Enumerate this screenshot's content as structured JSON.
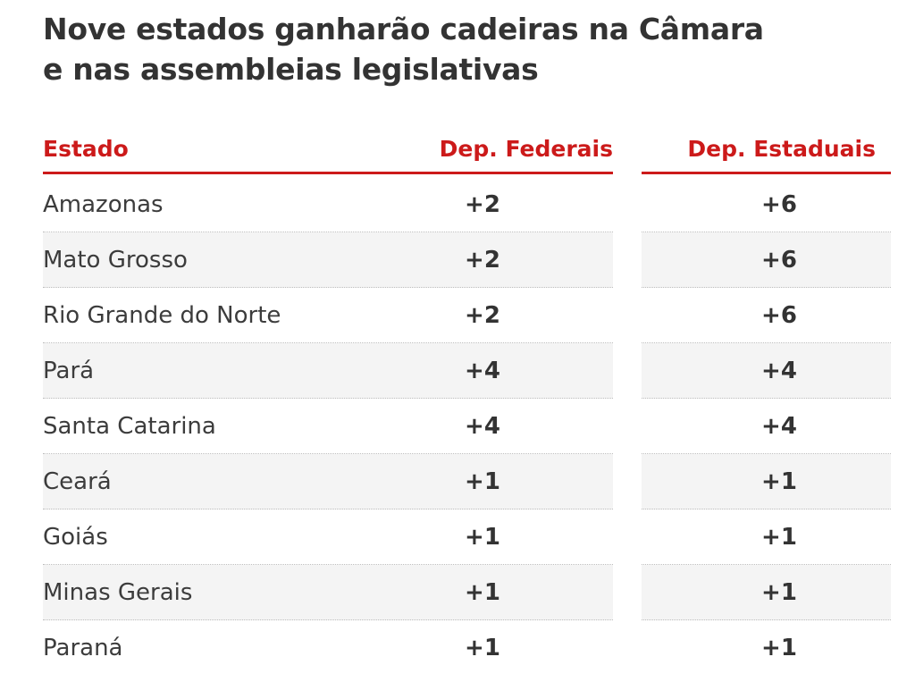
{
  "chart_data": {
    "type": "table",
    "title": "Nove estados ganharão cadeiras na Câmara e nas assembleias legislativas",
    "columns": [
      "Estado",
      "Dep. Federais",
      "Dep. Estaduais"
    ],
    "rows": [
      {
        "estado": "Amazonas",
        "federais": "+2",
        "estaduais": "+6"
      },
      {
        "estado": "Mato Grosso",
        "federais": "+2",
        "estaduais": "+6"
      },
      {
        "estado": "Rio Grande do Norte",
        "federais": "+2",
        "estaduais": "+6"
      },
      {
        "estado": "Pará",
        "federais": "+4",
        "estaduais": "+4"
      },
      {
        "estado": "Santa Catarina",
        "federais": "+4",
        "estaduais": "+4"
      },
      {
        "estado": "Ceará",
        "federais": "+1",
        "estaduais": "+1"
      },
      {
        "estado": "Goiás",
        "federais": "+1",
        "estaduais": "+1"
      },
      {
        "estado": "Minas Gerais",
        "federais": "+1",
        "estaduais": "+1"
      },
      {
        "estado": "Paraná",
        "federais": "+1",
        "estaduais": "+1"
      }
    ],
    "header_color": "#cc1a1a",
    "stripe_color": "#f4f4f4"
  }
}
